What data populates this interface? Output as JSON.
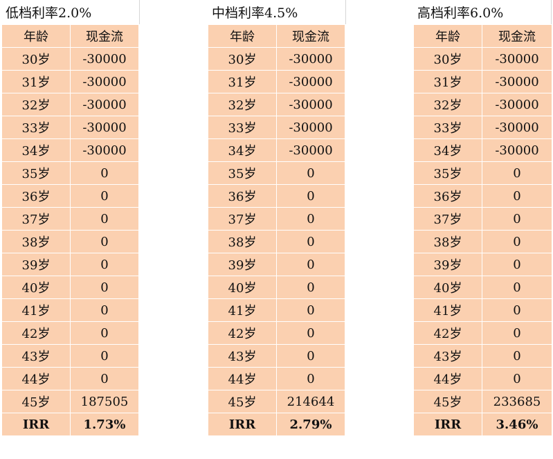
{
  "header": {
    "age": "年龄",
    "cashflow": "现金流"
  },
  "panels": [
    {
      "title": "低档利率2.0%",
      "rows": [
        {
          "age": "30岁",
          "cf": "-30000"
        },
        {
          "age": "31岁",
          "cf": "-30000"
        },
        {
          "age": "32岁",
          "cf": "-30000"
        },
        {
          "age": "33岁",
          "cf": "-30000"
        },
        {
          "age": "34岁",
          "cf": "-30000"
        },
        {
          "age": "35岁",
          "cf": "0"
        },
        {
          "age": "36岁",
          "cf": "0"
        },
        {
          "age": "37岁",
          "cf": "0"
        },
        {
          "age": "38岁",
          "cf": "0"
        },
        {
          "age": "39岁",
          "cf": "0"
        },
        {
          "age": "40岁",
          "cf": "0"
        },
        {
          "age": "41岁",
          "cf": "0"
        },
        {
          "age": "42岁",
          "cf": "0"
        },
        {
          "age": "43岁",
          "cf": "0"
        },
        {
          "age": "44岁",
          "cf": "0"
        },
        {
          "age": "45岁",
          "cf": "187505"
        }
      ],
      "irr_label": "IRR",
      "irr_value": "1.73%"
    },
    {
      "title": "中档利率4.5%",
      "rows": [
        {
          "age": "30岁",
          "cf": "-30000"
        },
        {
          "age": "31岁",
          "cf": "-30000"
        },
        {
          "age": "32岁",
          "cf": "-30000"
        },
        {
          "age": "33岁",
          "cf": "-30000"
        },
        {
          "age": "34岁",
          "cf": "-30000"
        },
        {
          "age": "35岁",
          "cf": "0"
        },
        {
          "age": "36岁",
          "cf": "0"
        },
        {
          "age": "37岁",
          "cf": "0"
        },
        {
          "age": "38岁",
          "cf": "0"
        },
        {
          "age": "39岁",
          "cf": "0"
        },
        {
          "age": "40岁",
          "cf": "0"
        },
        {
          "age": "41岁",
          "cf": "0"
        },
        {
          "age": "42岁",
          "cf": "0"
        },
        {
          "age": "43岁",
          "cf": "0"
        },
        {
          "age": "44岁",
          "cf": "0"
        },
        {
          "age": "45岁",
          "cf": "214644"
        }
      ],
      "irr_label": "IRR",
      "irr_value": "2.79%"
    },
    {
      "title": "高档利率6.0%",
      "rows": [
        {
          "age": "30岁",
          "cf": "-30000"
        },
        {
          "age": "31岁",
          "cf": "-30000"
        },
        {
          "age": "32岁",
          "cf": "-30000"
        },
        {
          "age": "33岁",
          "cf": "-30000"
        },
        {
          "age": "34岁",
          "cf": "-30000"
        },
        {
          "age": "35岁",
          "cf": "0"
        },
        {
          "age": "36岁",
          "cf": "0"
        },
        {
          "age": "37岁",
          "cf": "0"
        },
        {
          "age": "38岁",
          "cf": "0"
        },
        {
          "age": "39岁",
          "cf": "0"
        },
        {
          "age": "40岁",
          "cf": "0"
        },
        {
          "age": "41岁",
          "cf": "0"
        },
        {
          "age": "42岁",
          "cf": "0"
        },
        {
          "age": "43岁",
          "cf": "0"
        },
        {
          "age": "44岁",
          "cf": "0"
        },
        {
          "age": "45岁",
          "cf": "233685"
        }
      ],
      "irr_label": "IRR",
      "irr_value": "3.46%"
    }
  ]
}
